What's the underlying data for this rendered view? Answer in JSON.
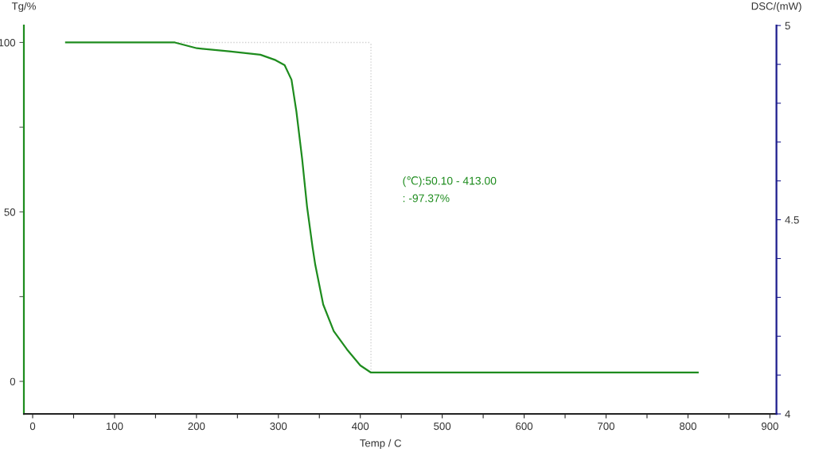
{
  "chart_data": {
    "type": "line",
    "xlabel": "Temp / C",
    "ylabel": "Tg/%",
    "y2label": "DSC/(mW)",
    "annotations": [
      "(℃):50.10 - 413.00",
      ": -97.37%"
    ],
    "x": [
      40.7,
      100,
      173.6,
      200.5,
      240,
      278,
      296.5,
      307.6,
      316,
      322,
      329,
      335,
      341.7,
      345,
      354.7,
      367.6,
      383.8,
      400,
      413,
      500,
      600,
      700,
      812
    ],
    "series": [
      {
        "color": "#1e8c1e",
        "values": [
          100,
          100,
          100,
          98.3,
          97.4,
          96.4,
          94.8,
          93.3,
          89,
          79.6,
          65.6,
          51.5,
          39.6,
          34.4,
          22.7,
          14.8,
          9.4,
          4.7,
          2.6,
          2.6,
          2.6,
          2.6,
          2.6
        ]
      }
    ],
    "xlim": [
      -10.7,
      908
    ],
    "xticks": [
      0,
      {
        "value": 50,
        "label": null
      },
      100,
      {
        "value": 150,
        "label": null
      },
      200,
      {
        "value": 250,
        "label": null
      },
      300,
      {
        "value": 350,
        "label": null
      },
      400,
      {
        "value": 450,
        "label": null
      },
      500,
      {
        "value": 550,
        "label": null
      },
      600,
      {
        "value": 650,
        "label": null
      },
      700,
      {
        "value": 750,
        "label": null
      },
      800,
      {
        "value": 850,
        "label": null
      },
      900
    ],
    "ylim": [
      -9.6,
      105
    ],
    "yticks": [
      0,
      {
        "value": 25,
        "label": null
      },
      50,
      {
        "value": 75,
        "label": null
      },
      100
    ],
    "y2lim": [
      4,
      5
    ],
    "y2ticks": [
      4,
      {
        "value": 4.1,
        "label": null
      },
      {
        "value": 4.2,
        "label": null
      },
      {
        "value": 4.3,
        "label": null
      },
      {
        "value": 4.4,
        "label": null
      },
      4.5,
      {
        "value": 4.6,
        "label": null
      },
      {
        "value": 4.7,
        "label": null
      },
      {
        "value": 4.8,
        "label": null
      },
      {
        "value": 4.9,
        "label": null
      },
      5
    ],
    "ref_lines": [
      {
        "axis": "x",
        "value": 413,
        "color": "#d0d0d0",
        "line_style": "dotted"
      },
      {
        "axis": "y",
        "value": 100,
        "color": "#d0d0d0",
        "line_style": "dotted"
      }
    ],
    "grid": false,
    "legend": false,
    "marker": "none",
    "line_style": "solid"
  }
}
